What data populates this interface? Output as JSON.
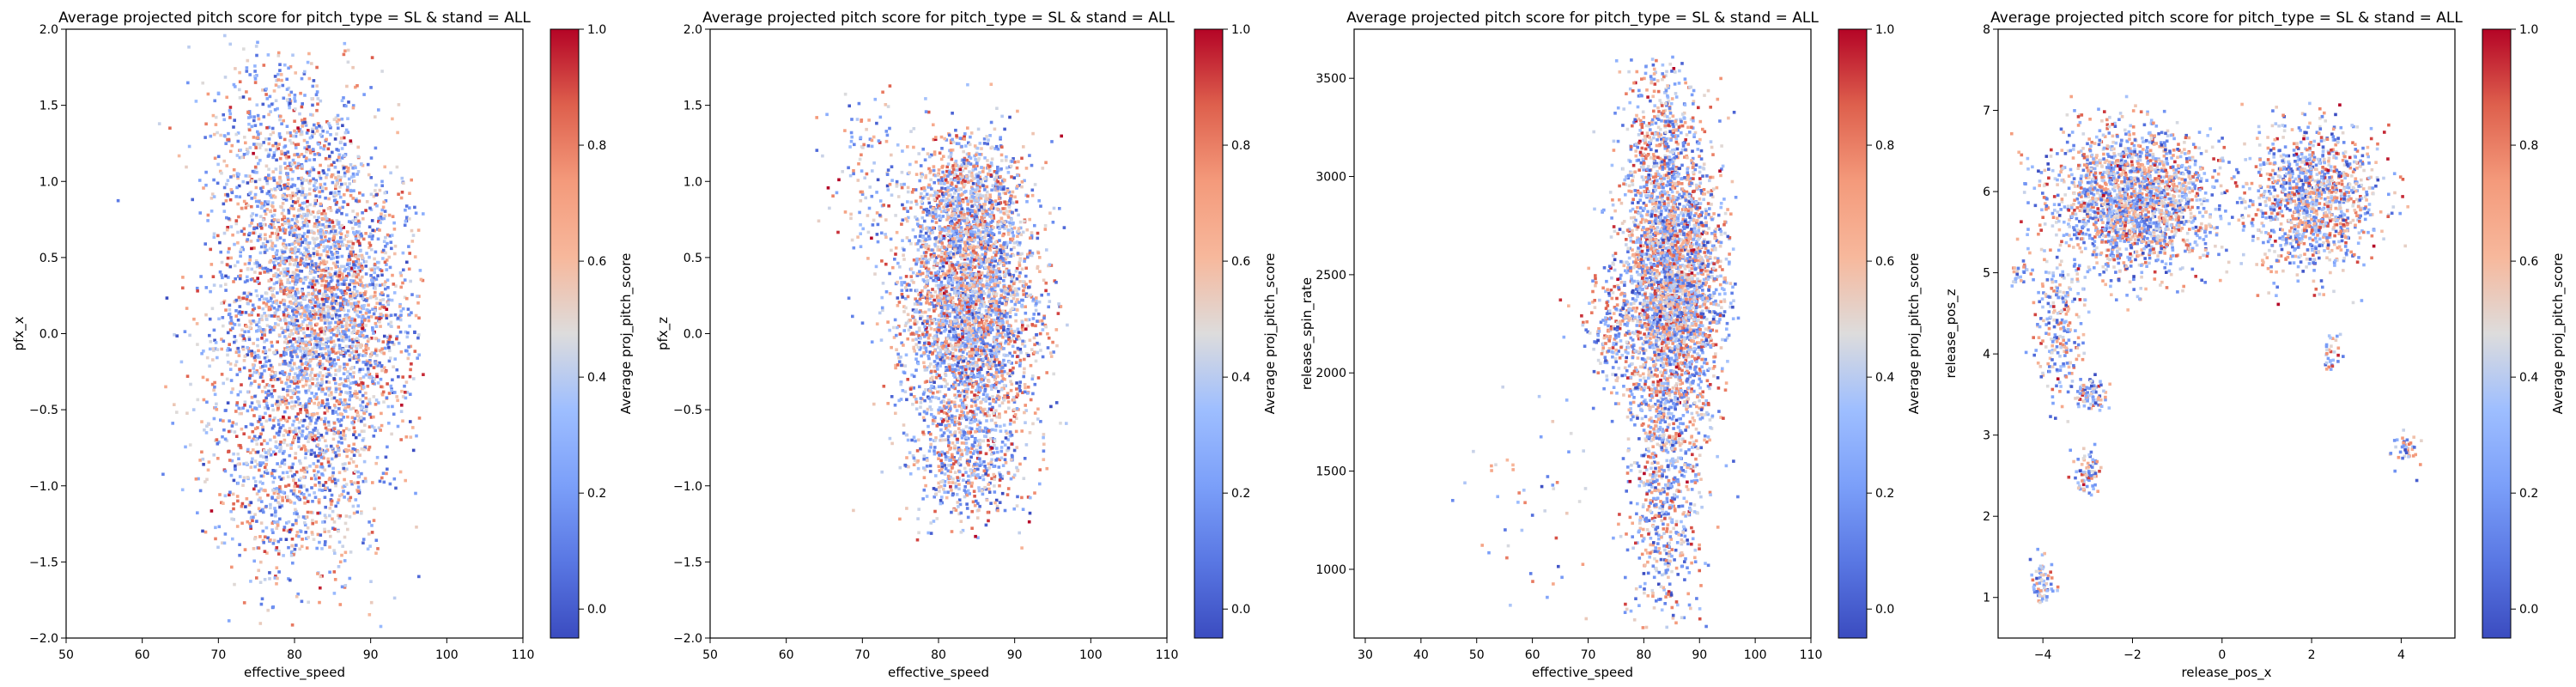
{
  "colormap": {
    "name": "coolwarm",
    "stops": [
      [
        0.0,
        "#3b4cc0"
      ],
      [
        0.125,
        "#5977e3"
      ],
      [
        0.25,
        "#7b9ff9"
      ],
      [
        0.375,
        "#9ebeff"
      ],
      [
        0.5,
        "#dddcdc"
      ],
      [
        0.625,
        "#f7b89c"
      ],
      [
        0.75,
        "#f49a7b"
      ],
      [
        0.875,
        "#de604d"
      ],
      [
        1.0,
        "#b40426"
      ]
    ]
  },
  "chart_data": [
    {
      "type": "scatter",
      "title": "Average projected pitch score for pitch_type = SL & stand = ALL",
      "xlabel": "effective_speed",
      "ylabel": "pfx_x",
      "xlim": [
        50,
        110
      ],
      "ylim": [
        -2.0,
        2.0
      ],
      "xticks": [
        50,
        60,
        70,
        80,
        90,
        100,
        110
      ],
      "xtick_labels": [
        "50",
        "60",
        "70",
        "80",
        "90",
        "100",
        "110"
      ],
      "yticks": [
        -2.0,
        -1.5,
        -1.0,
        -0.5,
        0.0,
        0.5,
        1.0,
        1.5,
        2.0
      ],
      "ytick_labels": [
        "−2.0",
        "−1.5",
        "−1.0",
        "−0.5",
        "0.0",
        "0.5",
        "1.0",
        "1.5",
        "2.0"
      ],
      "colorbar": {
        "label": "Average proj_pitch_score",
        "range": [
          -0.05,
          1.0
        ],
        "ticks": [
          0.0,
          0.2,
          0.4,
          0.6,
          0.8,
          1.0
        ],
        "tick_labels": [
          "0.0",
          "0.2",
          "0.4",
          "0.6",
          "0.8",
          "1.0"
        ]
      },
      "clusters": [
        {
          "cx": 82,
          "cy": 0.1,
          "sx": 6,
          "sy": 0.55,
          "n": 2600
        },
        {
          "cx": 79,
          "cy": 1.1,
          "sx": 5,
          "sy": 0.4,
          "n": 700
        },
        {
          "cx": 80,
          "cy": -1.0,
          "sx": 5,
          "sy": 0.35,
          "n": 600
        },
        {
          "cx": 89,
          "cy": 0.2,
          "sx": 4,
          "sy": 0.45,
          "n": 500
        },
        {
          "cx": 72,
          "cy": -0.6,
          "sx": 3,
          "sy": 0.25,
          "n": 50
        }
      ],
      "bounds": {
        "x": [
          52,
          97
        ],
        "y": [
          -1.95,
          1.97
        ]
      }
    },
    {
      "type": "scatter",
      "title": "Average projected pitch score for pitch_type = SL & stand = ALL",
      "xlabel": "effective_speed",
      "ylabel": "pfx_z",
      "xlim": [
        50,
        110
      ],
      "ylim": [
        -2.0,
        2.0
      ],
      "xticks": [
        50,
        60,
        70,
        80,
        90,
        100,
        110
      ],
      "xtick_labels": [
        "50",
        "60",
        "70",
        "80",
        "90",
        "100",
        "110"
      ],
      "yticks": [
        -2.0,
        -1.5,
        -1.0,
        -0.5,
        0.0,
        0.5,
        1.0,
        1.5,
        2.0
      ],
      "ytick_labels": [
        "−2.0",
        "−1.5",
        "−1.0",
        "−0.5",
        "0.0",
        "0.5",
        "1.0",
        "1.5",
        "2.0"
      ],
      "colorbar": {
        "label": "Average proj_pitch_score",
        "range": [
          -0.05,
          1.0
        ],
        "ticks": [
          0.0,
          0.2,
          0.4,
          0.6,
          0.8,
          1.0
        ],
        "tick_labels": [
          "0.0",
          "0.2",
          "0.4",
          "0.6",
          "0.8",
          "1.0"
        ]
      },
      "clusters": [
        {
          "cx": 84,
          "cy": 0.2,
          "sx": 4.5,
          "sy": 0.45,
          "n": 3200
        },
        {
          "cx": 84,
          "cy": 0.9,
          "sx": 3.5,
          "sy": 0.2,
          "n": 500
        },
        {
          "cx": 84,
          "cy": -0.8,
          "sx": 3.5,
          "sy": 0.25,
          "n": 500
        },
        {
          "cx": 71,
          "cy": 1.1,
          "sx": 2.5,
          "sy": 0.3,
          "n": 120
        }
      ],
      "bounds": {
        "x": [
          52,
          97
        ],
        "y": [
          -1.55,
          1.65
        ]
      }
    },
    {
      "type": "scatter",
      "title": "Average projected pitch score for pitch_type = SL & stand = ALL",
      "xlabel": "effective_speed",
      "ylabel": "release_spin_rate",
      "xlim": [
        28,
        110
      ],
      "ylim": [
        650,
        3750
      ],
      "xticks": [
        30,
        40,
        50,
        60,
        70,
        80,
        90,
        100,
        110
      ],
      "xtick_labels": [
        "30",
        "40",
        "50",
        "60",
        "70",
        "80",
        "90",
        "100",
        "110"
      ],
      "yticks": [
        1000,
        1500,
        2000,
        2500,
        3000,
        3500
      ],
      "ytick_labels": [
        "1000",
        "1500",
        "2000",
        "2500",
        "3000",
        "3500"
      ],
      "colorbar": {
        "label": "Average proj_pitch_score",
        "range": [
          -0.05,
          1.0
        ],
        "ticks": [
          0.0,
          0.2,
          0.4,
          0.6,
          0.8,
          1.0
        ],
        "tick_labels": [
          "0.0",
          "0.2",
          "0.4",
          "0.6",
          "0.8",
          "1.0"
        ]
      },
      "clusters": [
        {
          "cx": 85,
          "cy": 2450,
          "sx": 4.5,
          "sy": 350,
          "n": 3000
        },
        {
          "cx": 84,
          "cy": 1400,
          "sx": 3.5,
          "sy": 350,
          "n": 700
        },
        {
          "cx": 83,
          "cy": 3200,
          "sx": 3.5,
          "sy": 250,
          "n": 400
        },
        {
          "cx": 74,
          "cy": 2200,
          "sx": 2.5,
          "sy": 150,
          "n": 150
        },
        {
          "cx": 58,
          "cy": 1350,
          "sx": 6,
          "sy": 250,
          "n": 50
        }
      ],
      "bounds": {
        "x": [
          44,
          97
        ],
        "y": [
          700,
          3620
        ]
      }
    },
    {
      "type": "scatter",
      "title": "Average projected pitch score for pitch_type = SL & stand = ALL",
      "xlabel": "release_pos_x",
      "ylabel": "release_pos_z",
      "xlim": [
        -5.0,
        5.2
      ],
      "ylim": [
        0.5,
        8.0
      ],
      "xticks": [
        -4,
        -2,
        0,
        2,
        4
      ],
      "xtick_labels": [
        "−4",
        "−2",
        "0",
        "2",
        "4"
      ],
      "yticks": [
        1,
        2,
        3,
        4,
        5,
        6,
        7,
        8
      ],
      "ytick_labels": [
        "1",
        "2",
        "3",
        "4",
        "5",
        "6",
        "7",
        "8"
      ],
      "colorbar": {
        "label": "Average proj_pitch_score",
        "range": [
          -0.05,
          1.0
        ],
        "ticks": [
          0.0,
          0.2,
          0.4,
          0.6,
          0.8,
          1.0
        ],
        "tick_labels": [
          "0.0",
          "0.2",
          "0.4",
          "0.6",
          "0.8",
          "1.0"
        ]
      },
      "clusters": [
        {
          "cx": -2.0,
          "cy": 5.9,
          "sx": 0.9,
          "sy": 0.45,
          "n": 2000
        },
        {
          "cx": 2.0,
          "cy": 5.9,
          "sx": 0.7,
          "sy": 0.45,
          "n": 1200
        },
        {
          "cx": -3.6,
          "cy": 4.3,
          "sx": 0.3,
          "sy": 0.5,
          "n": 250
        },
        {
          "cx": -2.9,
          "cy": 3.5,
          "sx": 0.2,
          "sy": 0.1,
          "n": 80
        },
        {
          "cx": -3.0,
          "cy": 2.55,
          "sx": 0.15,
          "sy": 0.15,
          "n": 70
        },
        {
          "cx": -4.0,
          "cy": 1.2,
          "sx": 0.12,
          "sy": 0.17,
          "n": 70
        },
        {
          "cx": 4.1,
          "cy": 2.85,
          "sx": 0.15,
          "sy": 0.1,
          "n": 40
        },
        {
          "cx": 2.4,
          "cy": 4.0,
          "sx": 0.12,
          "sy": 0.15,
          "n": 30
        },
        {
          "cx": -4.5,
          "cy": 5.0,
          "sx": 0.15,
          "sy": 0.1,
          "n": 30
        }
      ],
      "bounds": {
        "x": [
          -4.7,
          4.6
        ],
        "y": [
          0.9,
          7.2
        ]
      }
    }
  ]
}
